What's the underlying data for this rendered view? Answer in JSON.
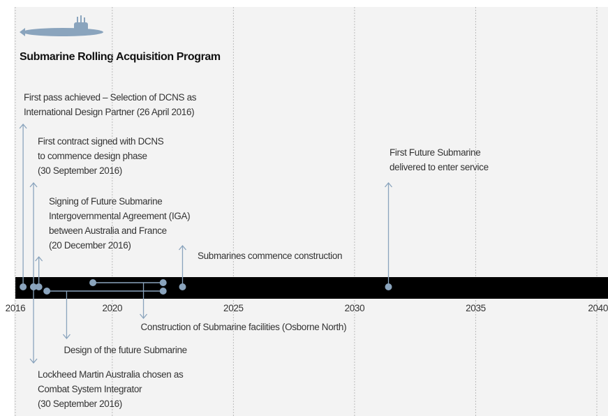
{
  "title": "Submarine Rolling Acquisition Program",
  "timeline": {
    "xlim": [
      2016,
      2040
    ],
    "xticks": [
      2016,
      2020,
      2025,
      2030,
      2035,
      2040
    ],
    "grid": true,
    "color": "#8aa4bd",
    "events": [
      {
        "date": 2016.32,
        "direction": "up",
        "lines": [
          "First pass achieved – Selection of DCNS as",
          "International Design Partner (26 April 2016)"
        ]
      },
      {
        "date": 2016.75,
        "direction": "up",
        "lines": [
          "First contract signed with DCNS",
          "to commence design phase",
          "(30 September 2016)"
        ]
      },
      {
        "date": 2016.97,
        "direction": "up",
        "lines": [
          "Signing of Future Submarine",
          "Intergovernmental Agreement (IGA)",
          "between Australia and France",
          "(20 December 2016)"
        ]
      },
      {
        "date": 2016.75,
        "direction": "down",
        "lines": [
          "Lockheed Martin Australia chosen as",
          "Combat System Integrator",
          "(30 September 2016)"
        ]
      },
      {
        "date": 2022.9,
        "direction": "up",
        "lines": [
          "Submarines commence construction"
        ]
      },
      {
        "date": 2031.4,
        "direction": "up",
        "lines": [
          "First Future Submarine",
          "delivered to enter service"
        ]
      }
    ],
    "spans": [
      {
        "start": 2017.3,
        "end": 2022.1,
        "lines": [
          "Design of the future Submarine"
        ]
      },
      {
        "start": 2019.2,
        "end": 2022.1,
        "lines": [
          "Construction of Submarine facilities (Osborne North)"
        ]
      }
    ]
  }
}
